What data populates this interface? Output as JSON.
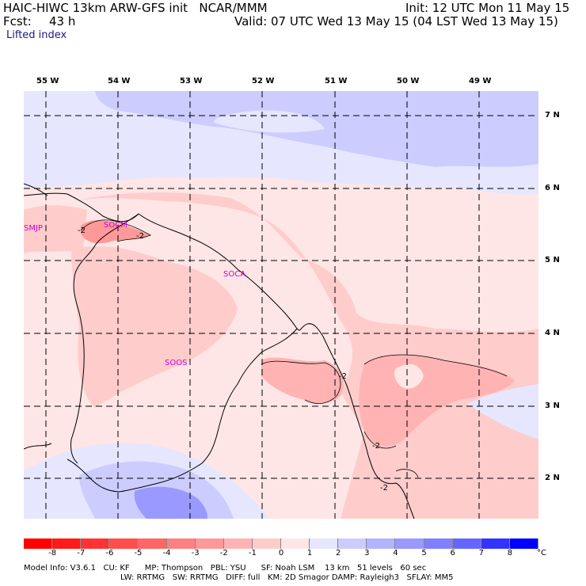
{
  "header": {
    "title": "HAIC-HIWC 13km ARW-GFS init   NCAR/MMM",
    "init": "Init: 12 UTC Mon 11 May 15",
    "fcst_label": "Fcst:",
    "fcst_value": "43 h",
    "valid": "Valid: 07 UTC Wed 13 May 15 (04 LST Wed 13 May 15)",
    "field": "Lifted index"
  },
  "map": {
    "lon_labels": [
      "55 W",
      "54 W",
      "53 W",
      "52 W",
      "51 W",
      "50 W",
      "49 W"
    ],
    "lat_labels": [
      "7 N",
      "6 N",
      "5 N",
      "4 N",
      "3 N",
      "2 N"
    ],
    "stations": [
      "SMJP",
      "SOCM",
      "SOCA",
      "SOOS"
    ],
    "contour_labels": [
      "-2",
      "-2",
      "-2",
      "-2",
      "-2"
    ]
  },
  "colorbar": {
    "ticks": [
      "-8",
      "-7",
      "-6",
      "-5",
      "-4",
      "-3",
      "-2",
      "-1",
      "0",
      "1",
      "2",
      "3",
      "4",
      "5",
      "6",
      "7",
      "8"
    ],
    "unit": "°C",
    "colors": [
      "#ff1a1a",
      "#ff3333",
      "#ff4d4d",
      "#ff6666",
      "#ff8080",
      "#ff9999",
      "#ffb3b3",
      "#ffcccc",
      "#ffe6e6",
      "#e6e6ff",
      "#ccccff",
      "#b3b3ff",
      "#9999ff",
      "#8080ff",
      "#6666ff",
      "#3333ff",
      "#0000ff"
    ]
  },
  "model_info": {
    "line1": "Model Info: V3.6.1   CU: KF      MP: Thompson   PBL: YSU      SF: Noah LSM    13 km   51 levels   60 sec",
    "line2": "LW: RRTMG   SW: RRTMG   DIFF: full   KM: 2D Smagor DAMP: Rayleigh3   SFLAY: MM5"
  }
}
